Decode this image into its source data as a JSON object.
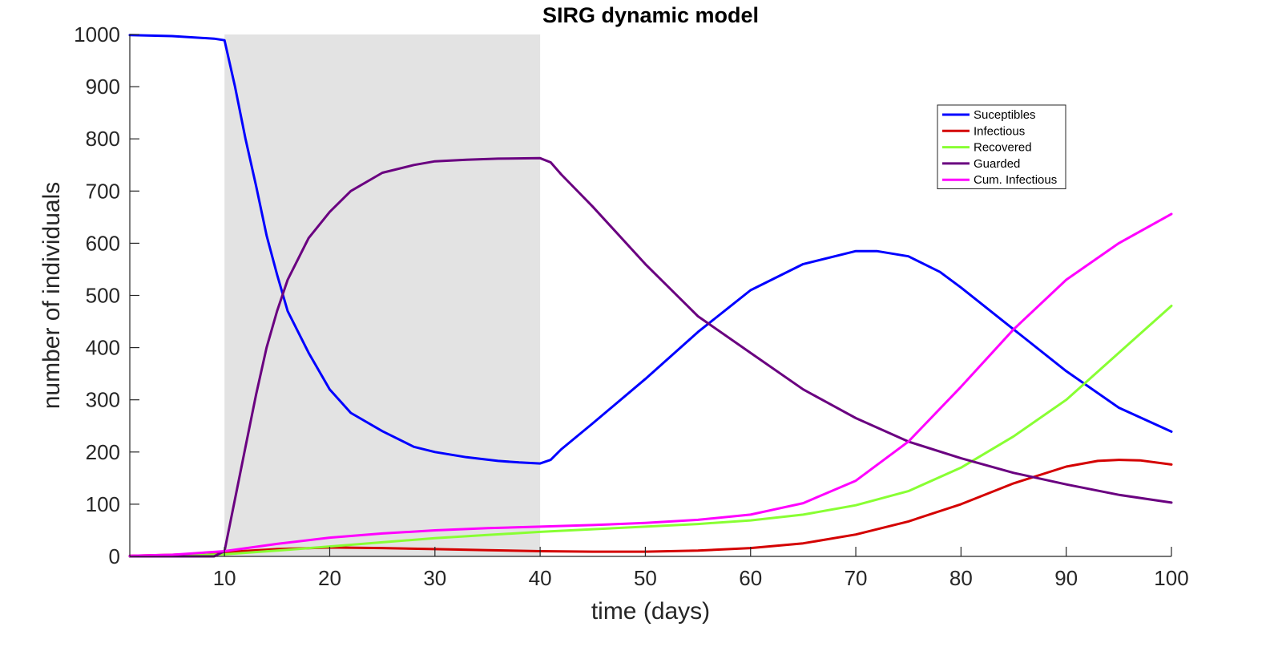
{
  "chart_data": {
    "type": "line",
    "title": "SIRG dynamic model",
    "xlabel": "time (days)",
    "ylabel": "number of individuals",
    "xlim": [
      1,
      100
    ],
    "ylim": [
      0,
      1000
    ],
    "xticks": [
      10,
      20,
      30,
      40,
      50,
      60,
      70,
      80,
      90,
      100
    ],
    "yticks": [
      0,
      100,
      200,
      300,
      400,
      500,
      600,
      700,
      800,
      900,
      1000
    ],
    "shaded_region": [
      10,
      40
    ],
    "grid": false,
    "legend_position": "top-right",
    "series": [
      {
        "name": "Suceptibles",
        "color": "#0000ff",
        "points": [
          [
            1,
            999
          ],
          [
            5,
            997
          ],
          [
            9,
            992
          ],
          [
            10,
            989
          ],
          [
            11,
            900
          ],
          [
            12,
            800
          ],
          [
            13,
            710
          ],
          [
            14,
            615
          ],
          [
            15,
            540
          ],
          [
            16,
            470
          ],
          [
            18,
            390
          ],
          [
            20,
            320
          ],
          [
            22,
            275
          ],
          [
            25,
            240
          ],
          [
            28,
            210
          ],
          [
            30,
            200
          ],
          [
            33,
            190
          ],
          [
            36,
            183
          ],
          [
            38,
            180
          ],
          [
            40,
            178
          ],
          [
            41,
            185
          ],
          [
            42,
            205
          ],
          [
            45,
            255
          ],
          [
            50,
            340
          ],
          [
            55,
            430
          ],
          [
            60,
            510
          ],
          [
            65,
            560
          ],
          [
            70,
            585
          ],
          [
            72,
            585
          ],
          [
            75,
            575
          ],
          [
            78,
            545
          ],
          [
            80,
            515
          ],
          [
            85,
            435
          ],
          [
            90,
            355
          ],
          [
            95,
            285
          ],
          [
            100,
            239
          ]
        ]
      },
      {
        "name": "Infectious",
        "color": "#d40000",
        "points": [
          [
            1,
            1
          ],
          [
            5,
            3
          ],
          [
            9,
            6
          ],
          [
            10,
            8
          ],
          [
            15,
            14
          ],
          [
            20,
            17
          ],
          [
            25,
            16
          ],
          [
            30,
            14
          ],
          [
            35,
            12
          ],
          [
            40,
            10
          ],
          [
            45,
            9
          ],
          [
            50,
            9
          ],
          [
            55,
            11
          ],
          [
            60,
            16
          ],
          [
            65,
            25
          ],
          [
            70,
            42
          ],
          [
            75,
            67
          ],
          [
            80,
            100
          ],
          [
            85,
            140
          ],
          [
            90,
            172
          ],
          [
            93,
            183
          ],
          [
            95,
            185
          ],
          [
            97,
            184
          ],
          [
            100,
            176
          ]
        ]
      },
      {
        "name": "Recovered",
        "color": "#88ff33",
        "points": [
          [
            1,
            0
          ],
          [
            5,
            1
          ],
          [
            10,
            4
          ],
          [
            15,
            11
          ],
          [
            20,
            19
          ],
          [
            25,
            27
          ],
          [
            30,
            35
          ],
          [
            35,
            41
          ],
          [
            40,
            47
          ],
          [
            45,
            52
          ],
          [
            50,
            57
          ],
          [
            55,
            62
          ],
          [
            60,
            69
          ],
          [
            65,
            80
          ],
          [
            70,
            98
          ],
          [
            75,
            125
          ],
          [
            80,
            170
          ],
          [
            85,
            230
          ],
          [
            90,
            300
          ],
          [
            95,
            390
          ],
          [
            100,
            480
          ]
        ]
      },
      {
        "name": "Guarded",
        "color": "#6a0080",
        "points": [
          [
            1,
            0
          ],
          [
            9,
            0
          ],
          [
            10,
            10
          ],
          [
            11,
            110
          ],
          [
            12,
            210
          ],
          [
            13,
            310
          ],
          [
            14,
            400
          ],
          [
            15,
            470
          ],
          [
            16,
            530
          ],
          [
            18,
            610
          ],
          [
            20,
            660
          ],
          [
            22,
            700
          ],
          [
            25,
            735
          ],
          [
            28,
            750
          ],
          [
            30,
            757
          ],
          [
            33,
            760
          ],
          [
            36,
            762
          ],
          [
            40,
            763
          ],
          [
            41,
            755
          ],
          [
            42,
            732
          ],
          [
            45,
            670
          ],
          [
            50,
            560
          ],
          [
            55,
            460
          ],
          [
            60,
            390
          ],
          [
            65,
            320
          ],
          [
            70,
            265
          ],
          [
            75,
            220
          ],
          [
            80,
            188
          ],
          [
            85,
            160
          ],
          [
            90,
            138
          ],
          [
            95,
            118
          ],
          [
            100,
            103
          ]
        ]
      },
      {
        "name": "Cum. Infectious",
        "color": "#ff00ff",
        "points": [
          [
            1,
            1
          ],
          [
            5,
            3
          ],
          [
            10,
            10
          ],
          [
            15,
            24
          ],
          [
            20,
            36
          ],
          [
            25,
            44
          ],
          [
            30,
            50
          ],
          [
            35,
            54
          ],
          [
            40,
            57
          ],
          [
            45,
            60
          ],
          [
            50,
            64
          ],
          [
            55,
            70
          ],
          [
            60,
            80
          ],
          [
            65,
            102
          ],
          [
            70,
            145
          ],
          [
            75,
            220
          ],
          [
            80,
            325
          ],
          [
            85,
            435
          ],
          [
            90,
            530
          ],
          [
            95,
            600
          ],
          [
            100,
            656
          ]
        ]
      }
    ]
  }
}
